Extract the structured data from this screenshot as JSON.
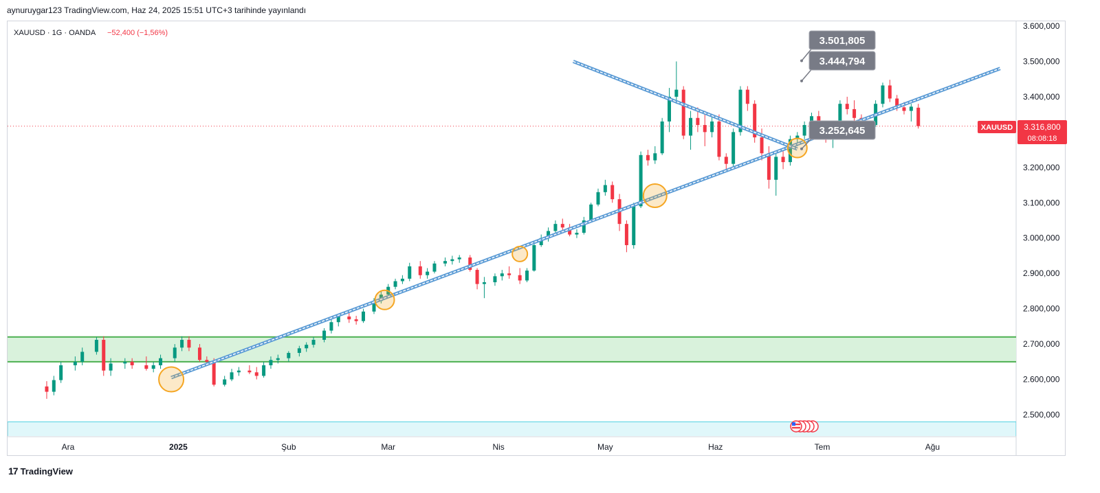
{
  "header": {
    "published": "aynuruygar123 TradingView.com, Haz 24, 2025 15:51 UTC+3 tarihinde yayınlandı"
  },
  "legend": {
    "symbol_line": "XAUUSD · 1G · OANDA",
    "change": "−52,400 (−1,56%)"
  },
  "price_tag": {
    "symbol": "XAUUSD",
    "price": "3.316,800",
    "countdown": "08:08:18"
  },
  "callouts": [
    {
      "label": "3.501,805"
    },
    {
      "label": "3.444,794"
    },
    {
      "label": "3.252,645"
    }
  ],
  "footer": {
    "brand": "TradingView",
    "logo_glyph": "17"
  },
  "colors": {
    "up": "#089981",
    "down": "#f23645",
    "trendline": "#5b9bd5",
    "support_zone_fill": "#d9f2dc",
    "support_zone_border": "#4caf50",
    "bottom_zone_fill": "#e0f7fa",
    "highlight_circle": "#f5a623",
    "callout_bg": "#787b86"
  },
  "chart_data": {
    "type": "candlestick",
    "symbol": "XAUUSD",
    "interval": "1G",
    "source": "OANDA",
    "ylim": [
      2450000,
      3620000
    ],
    "y_ticks": [
      "3.600,000",
      "3.500,000",
      "3.400,000",
      "3.300,000",
      "3.200,000",
      "3.100,000",
      "3.000,000",
      "2.900,000",
      "2.800,000",
      "2.700,000",
      "2.600,000",
      "2.500,000"
    ],
    "x_labels": [
      "Ara",
      "2025",
      "Şub",
      "Mar",
      "Nis",
      "May",
      "Haz",
      "Tem",
      "Ağu"
    ],
    "x_label_dates": [
      "2024-12-01",
      "2025-01-01",
      "2025-02-01",
      "2025-03-01",
      "2025-04-01",
      "2025-05-01",
      "2025-06-01",
      "2025-07-01",
      "2025-08-01"
    ],
    "last_price": 3316800,
    "support_zone": [
      2650000,
      2720000
    ],
    "bottom_zone": [
      2440000,
      2480000
    ],
    "trendlines": [
      {
        "name": "rising-support",
        "from": [
          "2024-12-30",
          2605000
        ],
        "to": [
          "2025-08-20",
          3480000
        ]
      },
      {
        "name": "falling-resistance",
        "from": [
          "2025-04-22",
          3500000
        ],
        "to": [
          "2025-06-24",
          3252000
        ]
      }
    ],
    "highlight_points": [
      {
        "date": "2024-12-30",
        "value": 2600000
      },
      {
        "date": "2025-02-28",
        "value": 2825000
      },
      {
        "date": "2025-04-07",
        "value": 2955000
      },
      {
        "date": "2025-05-15",
        "value": 3120000
      },
      {
        "date": "2025-06-24",
        "value": 3255000
      }
    ],
    "callout_values": [
      3501805,
      3444794,
      3252645
    ],
    "candles": [
      [
        "2024-11-25",
        2580000,
        2595000,
        2545000,
        2565000
      ],
      [
        "2024-11-27",
        2565000,
        2610000,
        2555000,
        2598000
      ],
      [
        "2024-11-29",
        2598000,
        2650000,
        2590000,
        2640000
      ],
      [
        "2024-12-03",
        2640000,
        2665000,
        2625000,
        2650000
      ],
      [
        "2024-12-05",
        2650000,
        2690000,
        2640000,
        2678000
      ],
      [
        "2024-12-09",
        2678000,
        2720000,
        2670000,
        2712000
      ],
      [
        "2024-12-11",
        2712000,
        2722000,
        2610000,
        2625000
      ],
      [
        "2024-12-13",
        2625000,
        2660000,
        2610000,
        2645000
      ],
      [
        "2024-12-17",
        2645000,
        2660000,
        2630000,
        2650000
      ],
      [
        "2024-12-19",
        2650000,
        2660000,
        2630000,
        2640000
      ],
      [
        "2024-12-23",
        2640000,
        2665000,
        2625000,
        2630000
      ],
      [
        "2024-12-25",
        2630000,
        2650000,
        2620000,
        2640000
      ],
      [
        "2024-12-27",
        2640000,
        2670000,
        2630000,
        2660000
      ],
      [
        "2024-12-31",
        2660000,
        2700000,
        2650000,
        2690000
      ],
      [
        "2025-01-02",
        2690000,
        2722000,
        2680000,
        2712000
      ],
      [
        "2025-01-04",
        2712000,
        2722000,
        2680000,
        2690000
      ],
      [
        "2025-01-07",
        2690000,
        2700000,
        2650000,
        2655000
      ],
      [
        "2025-01-09",
        2655000,
        2665000,
        2640000,
        2650000
      ],
      [
        "2025-01-11",
        2650000,
        2660000,
        2580000,
        2585000
      ],
      [
        "2025-01-14",
        2585000,
        2610000,
        2580000,
        2600000
      ],
      [
        "2025-01-16",
        2600000,
        2630000,
        2595000,
        2620000
      ],
      [
        "2025-01-18",
        2620000,
        2635000,
        2610000,
        2625000
      ],
      [
        "2025-01-21",
        2625000,
        2640000,
        2615000,
        2620000
      ],
      [
        "2025-01-23",
        2620000,
        2635000,
        2600000,
        2610000
      ],
      [
        "2025-01-25",
        2610000,
        2650000,
        2605000,
        2640000
      ],
      [
        "2025-01-27",
        2640000,
        2665000,
        2630000,
        2655000
      ],
      [
        "2025-01-29",
        2655000,
        2670000,
        2645000,
        2660000
      ],
      [
        "2025-02-01",
        2660000,
        2680000,
        2650000,
        2675000
      ],
      [
        "2025-02-04",
        2675000,
        2695000,
        2665000,
        2688000
      ],
      [
        "2025-02-06",
        2688000,
        2705000,
        2678000,
        2698000
      ],
      [
        "2025-02-08",
        2698000,
        2720000,
        2690000,
        2712000
      ],
      [
        "2025-02-11",
        2712000,
        2745000,
        2705000,
        2738000
      ],
      [
        "2025-02-13",
        2738000,
        2770000,
        2730000,
        2762000
      ],
      [
        "2025-02-15",
        2762000,
        2785000,
        2750000,
        2778000
      ],
      [
        "2025-02-18",
        2778000,
        2790000,
        2760000,
        2770000
      ],
      [
        "2025-02-20",
        2770000,
        2780000,
        2755000,
        2765000
      ],
      [
        "2025-02-22",
        2765000,
        2800000,
        2760000,
        2792000
      ],
      [
        "2025-02-25",
        2792000,
        2830000,
        2785000,
        2822000
      ],
      [
        "2025-02-27",
        2822000,
        2850000,
        2815000,
        2840000
      ],
      [
        "2025-03-01",
        2840000,
        2870000,
        2830000,
        2862000
      ],
      [
        "2025-03-03",
        2862000,
        2885000,
        2855000,
        2878000
      ],
      [
        "2025-03-05",
        2878000,
        2895000,
        2870000,
        2885000
      ],
      [
        "2025-03-07",
        2885000,
        2930000,
        2878000,
        2920000
      ],
      [
        "2025-03-10",
        2920000,
        2935000,
        2885000,
        2895000
      ],
      [
        "2025-03-12",
        2895000,
        2915000,
        2885000,
        2905000
      ],
      [
        "2025-03-14",
        2905000,
        2935000,
        2900000,
        2928000
      ],
      [
        "2025-03-17",
        2928000,
        2945000,
        2920000,
        2935000
      ],
      [
        "2025-03-19",
        2935000,
        2950000,
        2925000,
        2940000
      ],
      [
        "2025-03-21",
        2940000,
        2952000,
        2930000,
        2945000
      ],
      [
        "2025-03-24",
        2945000,
        2952000,
        2905000,
        2910000
      ],
      [
        "2025-03-26",
        2910000,
        2915000,
        2855000,
        2870000
      ],
      [
        "2025-03-28",
        2870000,
        2890000,
        2830000,
        2875000
      ],
      [
        "2025-03-31",
        2875000,
        2900000,
        2865000,
        2892000
      ],
      [
        "2025-04-02",
        2892000,
        2910000,
        2880000,
        2900000
      ],
      [
        "2025-04-04",
        2900000,
        2920000,
        2885000,
        2895000
      ],
      [
        "2025-04-07",
        2895000,
        2915000,
        2870000,
        2880000
      ],
      [
        "2025-04-09",
        2880000,
        2915000,
        2875000,
        2908000
      ],
      [
        "2025-04-11",
        2908000,
        2990000,
        2905000,
        2980000
      ],
      [
        "2025-04-13",
        2980000,
        3010000,
        2975000,
        3000000
      ],
      [
        "2025-04-15",
        3000000,
        3030000,
        2990000,
        3020000
      ],
      [
        "2025-04-17",
        3020000,
        3050000,
        3010000,
        3040000
      ],
      [
        "2025-04-19",
        3040000,
        3055000,
        3020000,
        3030000
      ],
      [
        "2025-04-21",
        3030000,
        3040000,
        3005000,
        3010000
      ],
      [
        "2025-04-23",
        3010000,
        3025000,
        3000000,
        3015000
      ],
      [
        "2025-04-25",
        3015000,
        3060000,
        3010000,
        3050000
      ],
      [
        "2025-04-27",
        3050000,
        3100000,
        3045000,
        3095000
      ],
      [
        "2025-04-29",
        3095000,
        3140000,
        3090000,
        3130000
      ],
      [
        "2025-05-01",
        3130000,
        3165000,
        3120000,
        3150000
      ],
      [
        "2025-05-03",
        3150000,
        3160000,
        3100000,
        3110000
      ],
      [
        "2025-05-05",
        3110000,
        3125000,
        3020000,
        3040000
      ],
      [
        "2025-05-07",
        3040000,
        3050000,
        2960000,
        2980000
      ],
      [
        "2025-05-09",
        2980000,
        3100000,
        2970000,
        3090000
      ],
      [
        "2025-05-11",
        3090000,
        3245000,
        3085000,
        3235000
      ],
      [
        "2025-05-13",
        3235000,
        3250000,
        3205000,
        3220000
      ],
      [
        "2025-05-15",
        3220000,
        3260000,
        3210000,
        3240000
      ],
      [
        "2025-05-17",
        3240000,
        3340000,
        3235000,
        3330000
      ],
      [
        "2025-05-19",
        3330000,
        3425000,
        3300000,
        3400000
      ],
      [
        "2025-05-21",
        3400000,
        3500000,
        3380000,
        3420000
      ],
      [
        "2025-05-23",
        3420000,
        3430000,
        3280000,
        3290000
      ],
      [
        "2025-05-25",
        3290000,
        3360000,
        3250000,
        3340000
      ],
      [
        "2025-05-27",
        3340000,
        3370000,
        3300000,
        3320000
      ],
      [
        "2025-05-29",
        3320000,
        3360000,
        3260000,
        3300000
      ],
      [
        "2025-05-31",
        3300000,
        3345000,
        3285000,
        3330000
      ],
      [
        "2025-06-02",
        3330000,
        3350000,
        3220000,
        3230000
      ],
      [
        "2025-06-04",
        3230000,
        3240000,
        3195000,
        3210000
      ],
      [
        "2025-06-06",
        3210000,
        3310000,
        3200000,
        3300000
      ],
      [
        "2025-06-08",
        3300000,
        3430000,
        3290000,
        3420000
      ],
      [
        "2025-06-10",
        3420000,
        3430000,
        3360000,
        3380000
      ],
      [
        "2025-06-12",
        3380000,
        3390000,
        3270000,
        3285000
      ],
      [
        "2025-06-14",
        3285000,
        3310000,
        3220000,
        3240000
      ],
      [
        "2025-06-16",
        3240000,
        3260000,
        3140000,
        3165000
      ],
      [
        "2025-06-18",
        3165000,
        3240000,
        3120000,
        3230000
      ],
      [
        "2025-06-20",
        3230000,
        3250000,
        3195000,
        3215000
      ],
      [
        "2025-06-22",
        3215000,
        3290000,
        3205000,
        3280000
      ],
      [
        "2025-06-24",
        3280000,
        3300000,
        3260000,
        3290000
      ],
      [
        "2025-06-26",
        3290000,
        3330000,
        3280000,
        3320000
      ],
      [
        "2025-06-28",
        3320000,
        3355000,
        3310000,
        3345000
      ],
      [
        "2025-06-30",
        3345000,
        3360000,
        3300000,
        3310000
      ],
      [
        "2025-07-02",
        3310000,
        3325000,
        3270000,
        3285000
      ],
      [
        "2025-07-04",
        3285000,
        3310000,
        3255000,
        3300000
      ],
      [
        "2025-07-06",
        3300000,
        3390000,
        3295000,
        3380000
      ],
      [
        "2025-07-08",
        3380000,
        3400000,
        3350000,
        3365000
      ],
      [
        "2025-07-10",
        3365000,
        3390000,
        3320000,
        3340000
      ],
      [
        "2025-07-12",
        3340000,
        3350000,
        3290000,
        3305000
      ],
      [
        "2025-07-14",
        3305000,
        3330000,
        3295000,
        3320000
      ],
      [
        "2025-07-16",
        3320000,
        3390000,
        3315000,
        3380000
      ],
      [
        "2025-07-18",
        3380000,
        3440000,
        3370000,
        3432000
      ],
      [
        "2025-07-20",
        3432000,
        3448000,
        3385000,
        3395000
      ],
      [
        "2025-07-22",
        3395000,
        3405000,
        3360000,
        3370000
      ],
      [
        "2025-07-24",
        3370000,
        3385000,
        3350000,
        3360000
      ],
      [
        "2025-07-26",
        3360000,
        3380000,
        3330000,
        3372000
      ],
      [
        "2025-07-28",
        3369000,
        3380000,
        3310000,
        3316800
      ]
    ]
  }
}
